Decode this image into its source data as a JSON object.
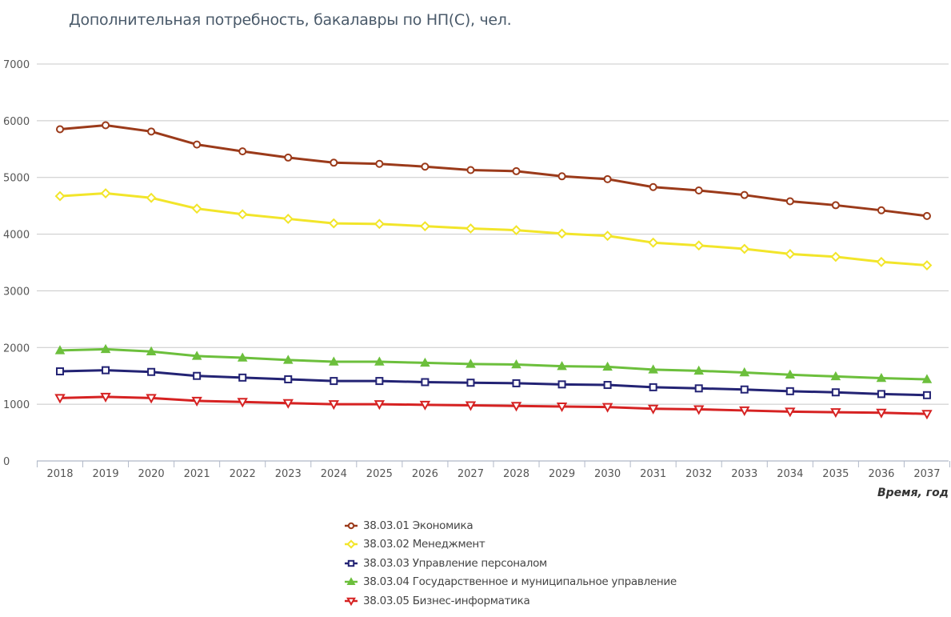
{
  "chart_data": {
    "type": "line",
    "title": "Дополнительная потребность, бакалавры по НП(С), чел.",
    "xlabel": "Время, год",
    "ylabel": "",
    "ylim": [
      0,
      7000
    ],
    "yticks": [
      "0",
      "1000",
      "2000",
      "3000",
      "4000",
      "5000",
      "6000",
      "7000"
    ],
    "categories": [
      "2018",
      "2019",
      "2020",
      "2021",
      "2022",
      "2023",
      "2024",
      "2025",
      "2026",
      "2027",
      "2028",
      "2029",
      "2030",
      "2031",
      "2032",
      "2033",
      "2034",
      "2035",
      "2036",
      "2037"
    ],
    "grid": true,
    "legend_position": "bottom",
    "series": [
      {
        "name": "38.03.01 Экономика",
        "color": "#9b3a1a",
        "marker": "circle",
        "values": [
          5850,
          5920,
          5810,
          5580,
          5460,
          5350,
          5260,
          5240,
          5190,
          5130,
          5110,
          5020,
          4970,
          4830,
          4770,
          4690,
          4580,
          4510,
          4420,
          4320
        ]
      },
      {
        "name": "38.03.02 Менеджмент",
        "color": "#f2e52a",
        "marker": "diamond",
        "values": [
          4670,
          4720,
          4640,
          4450,
          4350,
          4270,
          4190,
          4180,
          4140,
          4100,
          4070,
          4010,
          3970,
          3850,
          3800,
          3740,
          3650,
          3600,
          3510,
          3450
        ]
      },
      {
        "name": "38.03.03 Управление персоналом",
        "color": "#232374",
        "marker": "square",
        "values": [
          1580,
          1600,
          1570,
          1500,
          1470,
          1440,
          1410,
          1410,
          1390,
          1380,
          1370,
          1350,
          1340,
          1300,
          1280,
          1260,
          1230,
          1210,
          1180,
          1160
        ]
      },
      {
        "name": "38.03.04 Государственное и муниципальное управление",
        "color": "#6cbf3c",
        "marker": "triangle-up",
        "values": [
          1950,
          1970,
          1930,
          1850,
          1820,
          1780,
          1750,
          1750,
          1730,
          1710,
          1700,
          1670,
          1660,
          1610,
          1590,
          1560,
          1520,
          1490,
          1460,
          1440
        ]
      },
      {
        "name": "38.03.05 Бизнес-информатика",
        "color": "#d62222",
        "marker": "triangle-down",
        "values": [
          1110,
          1130,
          1110,
          1060,
          1040,
          1020,
          1000,
          1000,
          990,
          980,
          970,
          960,
          950,
          920,
          910,
          890,
          870,
          860,
          850,
          830
        ]
      }
    ]
  }
}
